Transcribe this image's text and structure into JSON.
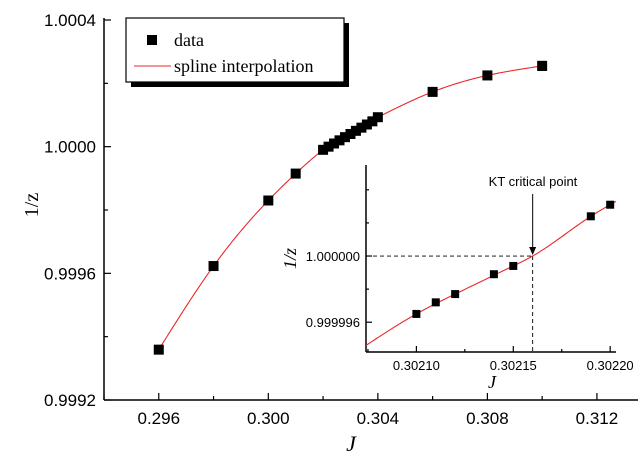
{
  "chart_data": [
    {
      "type": "scatter",
      "xlabel": "J",
      "ylabel": "1/z",
      "xlim": [
        0.294,
        0.3135
      ],
      "ylim": [
        0.9992,
        1.0004
      ],
      "xticks": [
        "0.296",
        "0.300",
        "0.304",
        "0.308",
        "0.312"
      ],
      "xtick_values": [
        0.296,
        0.3,
        0.304,
        0.308,
        0.312
      ],
      "yticks": [
        "0.9992",
        "0.9996",
        "1.0000",
        "1.0004"
      ],
      "ytick_values": [
        0.9992,
        0.9996,
        1.0,
        1.0004
      ],
      "legend": {
        "placement": "top-left",
        "entries": [
          "data",
          "spline interpolation"
        ]
      },
      "series": [
        {
          "name": "data",
          "style": "square-markers-with-error-bars",
          "color": "#000000",
          "points": [
            {
              "x": 0.296,
              "y": 0.999359,
              "err": 5.5e-06
            },
            {
              "x": 0.298,
              "y": 0.999623,
              "err": 6.5e-06
            },
            {
              "x": 0.3,
              "y": 0.99983,
              "err": 7.5e-06
            },
            {
              "x": 0.301,
              "y": 0.999915,
              "err": 8.5e-06
            },
            {
              "x": 0.302,
              "y": 0.99999,
              "err": 1e-05
            },
            {
              "x": 0.3022,
              "y": 1.0,
              "err": 1e-05
            },
            {
              "x": 0.3024,
              "y": 1.00001,
              "err": 1e-05
            },
            {
              "x": 0.3026,
              "y": 1.00002,
              "err": 1e-05
            },
            {
              "x": 0.3028,
              "y": 1.00003,
              "err": 1e-05
            },
            {
              "x": 0.303,
              "y": 1.00004,
              "err": 1e-05
            },
            {
              "x": 0.3032,
              "y": 1.00005,
              "err": 1e-05
            },
            {
              "x": 0.3034,
              "y": 1.00006,
              "err": 1e-05
            },
            {
              "x": 0.3036,
              "y": 1.00007,
              "err": 1e-05
            },
            {
              "x": 0.3038,
              "y": 1.00008,
              "err": 1e-05
            },
            {
              "x": 0.304,
              "y": 1.000093,
              "err": 1.1e-05
            },
            {
              "x": 0.306,
              "y": 1.000173,
              "err": 1.3e-05
            },
            {
              "x": 0.308,
              "y": 1.000225,
              "err": 1.35e-05
            },
            {
              "x": 0.31,
              "y": 1.000255,
              "err": 1.45e-05
            }
          ]
        },
        {
          "name": "spline interpolation",
          "style": "line",
          "color": "#e8282a",
          "knots": [
            {
              "x": 0.296,
              "y": 0.999359
            },
            {
              "x": 0.298,
              "y": 0.999623
            },
            {
              "x": 0.3,
              "y": 0.99983
            },
            {
              "x": 0.301,
              "y": 0.999915
            },
            {
              "x": 0.302,
              "y": 0.99999
            },
            {
              "x": 0.304,
              "y": 1.000093
            },
            {
              "x": 0.306,
              "y": 1.000173
            },
            {
              "x": 0.308,
              "y": 1.000225
            },
            {
              "x": 0.31,
              "y": 1.000255
            }
          ]
        }
      ]
    },
    {
      "type": "scatter",
      "role": "inset",
      "xlabel": "J",
      "ylabel": "1/z",
      "xlim": [
        0.302074,
        0.302203
      ],
      "ylim": [
        0.9999942,
        1.0000055
      ],
      "xticks": [
        "0.30210",
        "0.30215",
        "0.30220"
      ],
      "xtick_values": [
        0.3021,
        0.30215,
        0.3022
      ],
      "yticks": [
        "0.999996",
        "1.000000"
      ],
      "ytick_values": [
        0.999996,
        1.0
      ],
      "annotation": {
        "text": "KT critical point",
        "x": 0.30216,
        "y": 1.0
      },
      "series": [
        {
          "name": "data",
          "style": "square-markers",
          "color": "#000000",
          "points": [
            {
              "x": 0.3021,
              "y": 0.9999965
            },
            {
              "x": 0.30211,
              "y": 0.9999972
            },
            {
              "x": 0.30212,
              "y": 0.9999977
            },
            {
              "x": 0.30214,
              "y": 0.9999989
            },
            {
              "x": 0.30215,
              "y": 0.9999994
            },
            {
              "x": 0.30219,
              "y": 1.0000024
            },
            {
              "x": 0.3022,
              "y": 1.0000031
            }
          ]
        },
        {
          "name": "spline interpolation",
          "style": "line",
          "color": "#e8282a",
          "knots": [
            {
              "x": 0.302074,
              "y": 0.9999946
            },
            {
              "x": 0.3021,
              "y": 0.9999965
            },
            {
              "x": 0.30212,
              "y": 0.9999977
            },
            {
              "x": 0.30215,
              "y": 0.9999994
            },
            {
              "x": 0.30216,
              "y": 1.0
            },
            {
              "x": 0.30219,
              "y": 1.0000024
            },
            {
              "x": 0.302203,
              "y": 1.0000033
            }
          ]
        }
      ]
    }
  ]
}
